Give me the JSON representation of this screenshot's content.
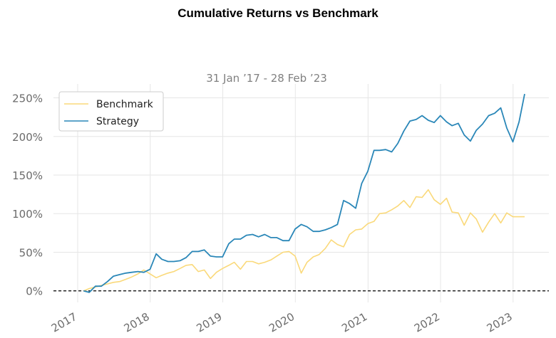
{
  "chart_data": {
    "type": "line",
    "title": "Cumulative Returns vs Benchmark",
    "subtitle": "31 Jan ’17 - 28 Feb ’23",
    "xlabel": "",
    "ylabel": "",
    "x_ticks": [
      "2017",
      "2018",
      "2019",
      "2020",
      "2021",
      "2022",
      "2023"
    ],
    "y_ticks": [
      "0%",
      "50%",
      "100%",
      "150%",
      "200%",
      "250%"
    ],
    "y_tick_values": [
      0,
      50,
      100,
      150,
      200,
      250
    ],
    "xlim": [
      "2016-09-01",
      "2023-06-30"
    ],
    "ylim": [
      -15,
      268
    ],
    "grid": true,
    "legend_position": "top-left",
    "baseline": 0,
    "colors": {
      "Benchmark": "#fad97a",
      "Strategy": "#2a87b8",
      "baseline": "#000000"
    },
    "x": [
      "2017-01-31",
      "2017-02-28",
      "2017-03-31",
      "2017-04-30",
      "2017-05-31",
      "2017-06-30",
      "2017-07-31",
      "2017-08-31",
      "2017-09-30",
      "2017-10-31",
      "2017-11-30",
      "2017-12-31",
      "2018-01-31",
      "2018-02-28",
      "2018-03-31",
      "2018-04-30",
      "2018-05-31",
      "2018-06-30",
      "2018-07-31",
      "2018-08-31",
      "2018-09-30",
      "2018-10-31",
      "2018-11-30",
      "2018-12-31",
      "2019-01-31",
      "2019-02-28",
      "2019-03-31",
      "2019-04-30",
      "2019-05-31",
      "2019-06-30",
      "2019-07-31",
      "2019-08-31",
      "2019-09-30",
      "2019-10-31",
      "2019-11-30",
      "2019-12-31",
      "2020-01-31",
      "2020-02-29",
      "2020-03-31",
      "2020-04-30",
      "2020-05-31",
      "2020-06-30",
      "2020-07-31",
      "2020-08-31",
      "2020-09-30",
      "2020-10-31",
      "2020-11-30",
      "2020-12-31",
      "2021-01-31",
      "2021-02-28",
      "2021-03-31",
      "2021-04-30",
      "2021-05-31",
      "2021-06-30",
      "2021-07-31",
      "2021-08-31",
      "2021-09-30",
      "2021-10-31",
      "2021-11-30",
      "2021-12-31",
      "2022-01-31",
      "2022-02-28",
      "2022-03-31",
      "2022-04-30",
      "2022-05-31",
      "2022-06-30",
      "2022-07-31",
      "2022-08-31",
      "2022-09-30",
      "2022-10-31",
      "2022-11-30",
      "2022-12-31",
      "2023-01-31",
      "2023-02-28"
    ],
    "series": [
      {
        "name": "Benchmark",
        "values": [
          0,
          3,
          5,
          7,
          9,
          11,
          12,
          15,
          18,
          22,
          27,
          22,
          17,
          20,
          23,
          25,
          29,
          33,
          34,
          25,
          27,
          16,
          24,
          29,
          33,
          37,
          28,
          38,
          38,
          35,
          37,
          40,
          45,
          50,
          51,
          45,
          23,
          37,
          44,
          47,
          55,
          66,
          60,
          57,
          73,
          79,
          80,
          87,
          90,
          100,
          101,
          105,
          110,
          117,
          108,
          122,
          121,
          131,
          118,
          112,
          120,
          102,
          101,
          85,
          101,
          93,
          76,
          89,
          100,
          88,
          101,
          96,
          96,
          96
        ]
      },
      {
        "name": "Strategy",
        "values": [
          0,
          -2,
          6,
          6,
          12,
          19,
          21,
          23,
          24,
          25,
          24,
          28,
          48,
          41,
          38,
          38,
          39,
          43,
          51,
          51,
          53,
          45,
          44,
          44,
          61,
          67,
          67,
          72,
          73,
          70,
          73,
          69,
          69,
          65,
          65,
          80,
          86,
          83,
          77,
          77,
          79,
          82,
          86,
          117,
          113,
          107,
          139,
          155,
          182,
          182,
          183,
          180,
          191,
          207,
          220,
          222,
          227,
          221,
          218,
          227,
          219,
          214,
          217,
          202,
          194,
          208,
          216,
          227,
          230,
          237,
          211,
          193,
          219,
          255
        ]
      }
    ]
  }
}
